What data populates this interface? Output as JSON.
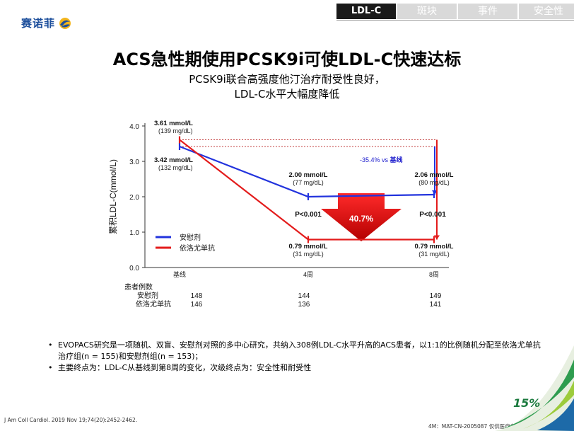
{
  "logo": {
    "text": "赛诺菲"
  },
  "tabs": [
    {
      "label": "LDL-C",
      "active": true
    },
    {
      "label": "斑块",
      "active": false
    },
    {
      "label": "事件",
      "active": false
    },
    {
      "label": "安全性",
      "active": false
    }
  ],
  "title": "ACS急性期使用PCSK9i可使LDL-C快速达标",
  "subtitle_lines": [
    "PCSK9i联合高强度他汀治疗耐受性良好，",
    "LDL-C水平大幅度降低"
  ],
  "chart_data": {
    "type": "line",
    "ylabel": "累积LDL-C(mmol/L)",
    "ylim": [
      0,
      4.0
    ],
    "yticks": [
      "0.0",
      "1.0",
      "2.0",
      "3.0",
      "4.0"
    ],
    "categories": [
      "基线",
      "4周",
      "8周"
    ],
    "series": [
      {
        "name": "安慰剂",
        "color": "#2233dd",
        "values": [
          3.42,
          2.0,
          2.06
        ]
      },
      {
        "name": "依洛尤单抗",
        "color": "#e31b1b",
        "values": [
          3.61,
          0.79,
          0.79
        ]
      }
    ],
    "data_labels": {
      "base_red": [
        "3.61 mmol/L",
        "(139 mg/dL)"
      ],
      "base_blue": [
        "3.42 mmol/L",
        "(132 mg/dL)"
      ],
      "w4_blue": [
        "2.00 mmol/L",
        "(77 mg/dL)"
      ],
      "w8_blue": [
        "2.06 mmol/L",
        "(80 mg/dL)"
      ],
      "w4_red": [
        "0.79 mmol/L",
        "(31 mg/dL)"
      ],
      "w8_red": [
        "0.79 mmol/L",
        "(31 mg/dL)"
      ]
    },
    "p_value_w4": "P<0.001",
    "p_value_w8": "P<0.001",
    "reduction_label": "40.7%",
    "vs_label_prefix": "-35.4% vs ",
    "vs_label_bold": "基线",
    "patients": {
      "header": "患者例数",
      "rows": [
        {
          "name": "安慰剂",
          "values": [
            "148",
            "144",
            "149"
          ]
        },
        {
          "name": "依洛尤单抗",
          "values": [
            "146",
            "136",
            "141"
          ]
        }
      ]
    }
  },
  "notes": [
    "EVOPACS研究是一项随机、双盲、安慰剂对照的多中心研究，共纳入308例LDL-C水平升高的ACS患者，以1:1的比例随机分配至依洛尤单抗治疗组(n = 155)和安慰剂组(n = 153)；",
    "主要终点为：LDL-C从基线到第8周的变化，次级终点为：安全性和耐受性"
  ],
  "reference": "J Am Coll Cardiol. 2019 Nov 19;74(20):2452-2462.",
  "code": "4M：MAT-CN-2005087  仅供医疗专业人士参考",
  "badge": "15%"
}
